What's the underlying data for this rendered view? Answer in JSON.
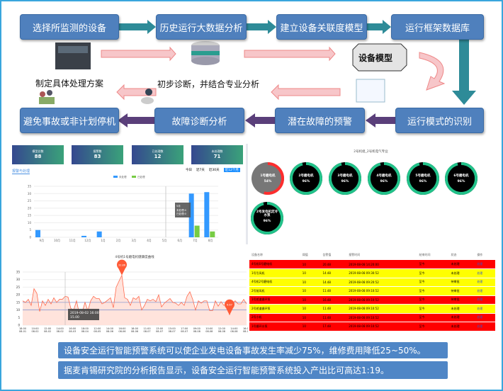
{
  "flow": {
    "top": [
      "选择所监测的设备",
      "历史运行大数据分析",
      "建立设备关联度模型",
      "运行框架数据库"
    ],
    "bottom": [
      "避免事故或非计划停机",
      "故障诊断分析",
      "潜在故障的预警",
      "运行模式的识别"
    ],
    "middle_labels": {
      "model": "设备模型",
      "plan": "制定具体处理方案",
      "diagnosis": "初步诊断，并结合专业分析"
    }
  },
  "dashboard": {
    "kpis": [
      {
        "label": "模型总数",
        "value": "88"
      },
      {
        "label": "报警数",
        "value": "83"
      },
      {
        "label": "已处理数",
        "value": "12"
      },
      {
        "label": "未处理数",
        "value": "71"
      }
    ],
    "tab": "报警与处理",
    "ranges": [
      "今日",
      "近7天",
      "近30天",
      "近12个月"
    ],
    "active_range": "近12个月",
    "tooltip": {
      "title": "5月",
      "rows": [
        "未处理:0",
        "已处理:0"
      ]
    }
  },
  "gauges": {
    "title": "2号机组_2号机电气专业",
    "items": [
      {
        "name": "1号磨电机",
        "value": "54%",
        "pct": 54,
        "status": "warn"
      },
      {
        "name": "2号磨电机",
        "value": "96%",
        "pct": 96,
        "status": "ok"
      },
      {
        "name": "3号磨电机",
        "value": "96%",
        "pct": 96,
        "status": "ok"
      },
      {
        "name": "4号磨电机",
        "value": "96%",
        "pct": 96,
        "status": "ok"
      },
      {
        "name": "5号磨电机",
        "value": "96%",
        "pct": 96,
        "status": "ok"
      },
      {
        "name": "6号磨电机",
        "value": "96%",
        "pct": 96,
        "status": "ok"
      },
      {
        "name": "2号发电机定冷水泵",
        "value": "96%",
        "pct": 96,
        "status": "ok"
      }
    ]
  },
  "alarm_table": {
    "headers": [
      "设备名称",
      "阈值",
      "告警值",
      "报警时间",
      "结束时间",
      "状态",
      "操作"
    ],
    "rows": [
      {
        "level": "red",
        "cells": [
          "4号机6号磨电机",
          "10",
          "20.48",
          "2019-08-08 14:20:00",
          "至今",
          "未处理",
          "处理"
        ]
      },
      {
        "level": "yellow",
        "cells": [
          "1号引风机",
          "10",
          "14.48",
          "2019-08-08 09:30:52",
          "至今",
          "未处理",
          "处理"
        ]
      },
      {
        "level": "yellow",
        "cells": [
          "4号机2号磨电机",
          "10",
          "14.48",
          "2019-08-08 09:20:52",
          "至今",
          "待审批",
          "处理"
        ]
      },
      {
        "level": "yellow",
        "cells": [
          "2号前风机",
          "10",
          "11.48",
          "2019-08-08 09:10:52",
          "至今",
          "待审批",
          "处理"
        ]
      },
      {
        "level": "red",
        "cells": [
          "1号贰道循环泵",
          "10",
          "16.48",
          "2019-08-08 09:10:52",
          "至今",
          "待审批",
          "处理"
        ]
      },
      {
        "level": "yellow",
        "cells": [
          "2号贰道循环泵",
          "10",
          "11.48",
          "2019-08-08 09:10:52",
          "至今",
          "未处理",
          "处理"
        ]
      },
      {
        "level": "red",
        "cells": [
          "2号小机",
          "10",
          "11.48",
          "2019-08-08 09:10:52",
          "至今",
          "未处理",
          "处理"
        ]
      },
      {
        "level": "red",
        "cells": [
          "1号循环水泵",
          "10",
          "17.48",
          "2019-08-08 09:10:52",
          "至今",
          "未处理",
          "处理"
        ]
      }
    ]
  },
  "notes": [
    "设备安全运行智能预警系统可以使企业发电设备事故发生率减少75%，维修费用降低25~50%。",
    "据麦肯锡研究院的分析报告显示，设备安全运行智能预警系统投入产出比可高达1:19。"
  ],
  "colors": {
    "box": "#4f80bd",
    "green": "#22c28a",
    "red": "#ff2d2d",
    "alarm_red": "#ff0000",
    "alarm_yellow": "#ffff00",
    "line": "#ff6a4d"
  },
  "chart_data": [
    {
      "type": "bar",
      "categories": [
        "9月",
        "10月",
        "11月",
        "12月",
        "1月",
        "2月",
        "3月",
        "4月",
        "5月",
        "6月",
        "7月",
        "8月"
      ],
      "series": [
        {
          "name": "未处理",
          "values": [
            5,
            0,
            0,
            1,
            4,
            0,
            0,
            0,
            0,
            0,
            30,
            31
          ]
        },
        {
          "name": "已处理",
          "values": [
            0,
            0,
            0,
            0,
            0,
            0,
            0,
            0,
            0,
            0,
            8,
            4
          ]
        }
      ],
      "ylim": [
        0,
        35
      ],
      "yticks": [
        0,
        5,
        10,
        15,
        20,
        25,
        30,
        35
      ],
      "legend": "top",
      "grid": true
    },
    {
      "type": "line",
      "title": "4号机1号磨电机健康度曲线",
      "ylim": [
        0,
        35
      ],
      "yticks": [
        0,
        5,
        10,
        15,
        20,
        25,
        30,
        35
      ],
      "xticks": [
        "18:00 08-01",
        "10:00 08-02",
        "12:00 08-02",
        "14:00 08-02",
        "16:00 08-03",
        "18:00 08-04",
        "12:00 08-05",
        "14:00 08-06",
        "16:00 08-06",
        "18:00 08-06",
        "11:00 08-07",
        "13:00 08-07",
        "15:00 08-07",
        "17:00 08-07",
        "09:00 08-08",
        "10:00 08-08",
        "12:00 08-08",
        "14:00 08-08",
        "16:00 08-08"
      ],
      "values": [
        16,
        15,
        17,
        13,
        24,
        21,
        9,
        16,
        13,
        17,
        14,
        18,
        15,
        17,
        17,
        19,
        18.5,
        11,
        10,
        16,
        7.5,
        8.5,
        15,
        9.5,
        16,
        19,
        17.5,
        17.5,
        14,
        15,
        16.5,
        18,
        11.5,
        25,
        29,
        32.86,
        18,
        17,
        13,
        18,
        17,
        19,
        10,
        13,
        17,
        16,
        17,
        15.5,
        20,
        12,
        14.5,
        16,
        17.5,
        15,
        14.5,
        13,
        15,
        13,
        19,
        22,
        17,
        10,
        16,
        14.5,
        16,
        16,
        9.5,
        9.5,
        16,
        12.5,
        15.5,
        13,
        14,
        6.67,
        14.5,
        16,
        14,
        14,
        17,
        14
      ],
      "thresholds": [
        10,
        15
      ],
      "markers": [
        {
          "label": "32.86",
          "value": 32.86
        },
        {
          "label": "6.67",
          "value": 6.67
        }
      ],
      "tooltip": {
        "title": "2019-08-02 16:00",
        "value": "15.00"
      }
    }
  ]
}
